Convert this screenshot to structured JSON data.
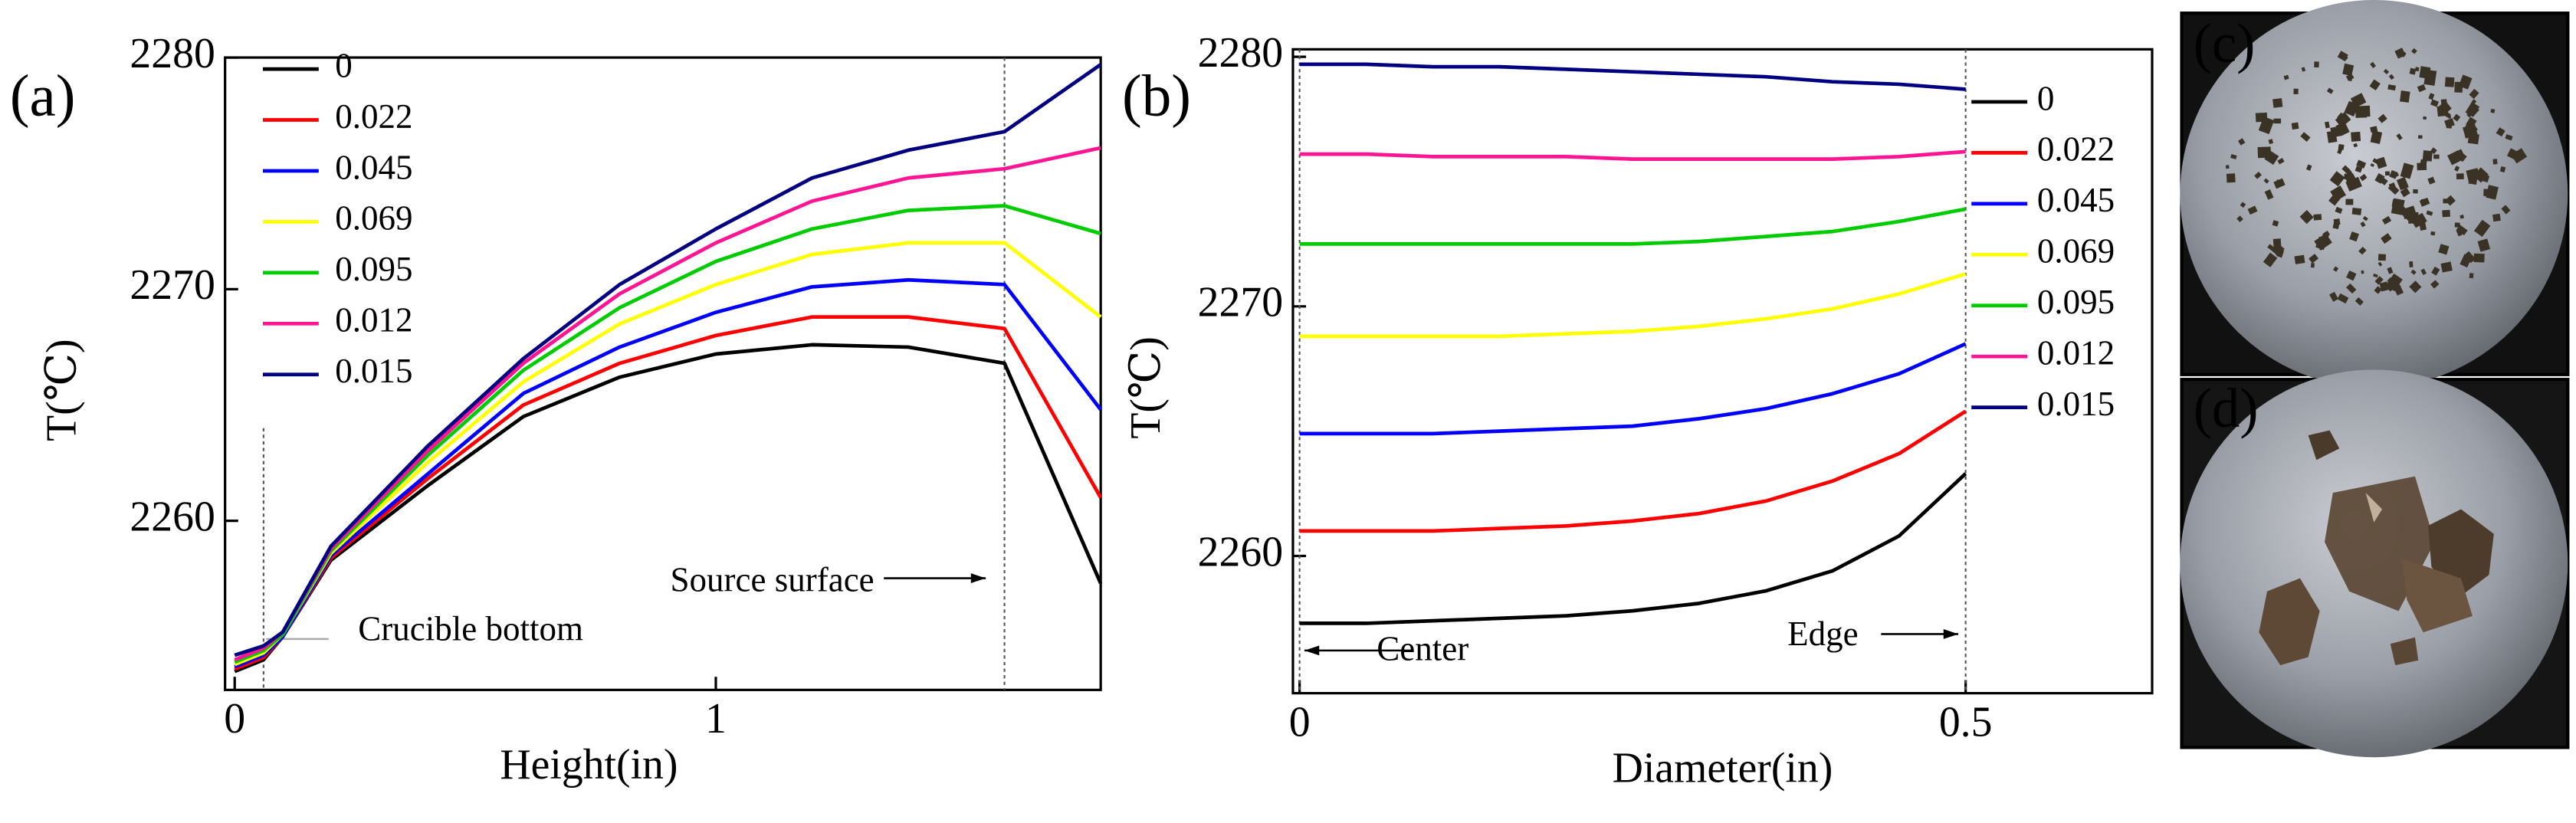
{
  "panel_labels": [
    "(a)",
    "(b)",
    "(c)",
    "(d)"
  ],
  "chart_data": [
    {
      "type": "line",
      "xlabel": "Height(in)",
      "ylabel": "T(℃)",
      "x": [
        0,
        0.06,
        0.1,
        0.2,
        0.4,
        0.6,
        0.8,
        1.0,
        1.2,
        1.4,
        1.6,
        1.8
      ],
      "xlim": [
        -0.02,
        1.8
      ],
      "xticks": [
        0,
        1
      ],
      "ylim": [
        2252.7,
        2280
      ],
      "yticks": [
        2260,
        2270,
        2280
      ],
      "legend": "upper left",
      "vlines": [
        0.06,
        1.6
      ],
      "annotations": [
        "Crucible bottom",
        "Source surface"
      ],
      "series": [
        {
          "name": "0",
          "color": "#000000",
          "values": [
            2253.5,
            2254,
            2255,
            2258.3,
            2261.5,
            2264.5,
            2266.2,
            2267.2,
            2267.6,
            2267.5,
            2266.8,
            2257.3
          ]
        },
        {
          "name": "0.022",
          "color": "#ff0000",
          "values": [
            2253.6,
            2254.1,
            2255,
            2258.4,
            2261.8,
            2265,
            2266.8,
            2268,
            2268.8,
            2268.8,
            2268.3,
            2261
          ]
        },
        {
          "name": "0.045",
          "color": "#0000ff",
          "values": [
            2253.7,
            2254.2,
            2255,
            2258.5,
            2262,
            2265.5,
            2267.5,
            2269,
            2270.1,
            2270.4,
            2270.2,
            2264.8
          ]
        },
        {
          "name": "0.069",
          "color": "#ffff00",
          "values": [
            2253.8,
            2254.3,
            2255.1,
            2258.6,
            2262.5,
            2266,
            2268.5,
            2270.2,
            2271.5,
            2272,
            2272,
            2268.8
          ]
        },
        {
          "name": "0.095",
          "color": "#00cc00",
          "values": [
            2253.9,
            2254.4,
            2255.1,
            2258.7,
            2262.8,
            2266.5,
            2269.2,
            2271.2,
            2272.6,
            2273.4,
            2273.6,
            2272.4
          ]
        },
        {
          "name": "0.012",
          "color": "#ff1493",
          "values": [
            2254,
            2254.5,
            2255.2,
            2258.8,
            2263,
            2266.8,
            2269.8,
            2272,
            2273.8,
            2274.8,
            2275.2,
            2276.1
          ]
        },
        {
          "name": "0.015",
          "color": "#000080",
          "values": [
            2254.2,
            2254.6,
            2255.2,
            2258.9,
            2263.2,
            2267,
            2270.2,
            2272.6,
            2274.8,
            2276,
            2276.8,
            2279.7
          ]
        }
      ]
    },
    {
      "type": "line",
      "xlabel": "Diameter(in)",
      "ylabel": "T(℃)",
      "x": [
        0,
        0.05,
        0.1,
        0.15,
        0.2,
        0.25,
        0.3,
        0.35,
        0.4,
        0.45,
        0.5
      ],
      "xlim": [
        -0.005,
        0.64
      ],
      "xticks": [
        0,
        0.5
      ],
      "ylim": [
        2254.5,
        2280.3
      ],
      "yticks": [
        2260,
        2270,
        2280
      ],
      "legend": "upper right",
      "vlines": [
        0,
        0.5
      ],
      "annotations": [
        "Center",
        "Edge"
      ],
      "series": [
        {
          "name": "0",
          "color": "#000000",
          "values": [
            2257.3,
            2257.3,
            2257.4,
            2257.5,
            2257.6,
            2257.8,
            2258.1,
            2258.6,
            2259.4,
            2260.8,
            2263.3
          ]
        },
        {
          "name": "0.022",
          "color": "#ff0000",
          "values": [
            2261,
            2261,
            2261,
            2261.1,
            2261.2,
            2261.4,
            2261.7,
            2262.2,
            2263,
            2264.1,
            2265.8
          ]
        },
        {
          "name": "0.045",
          "color": "#0000ff",
          "values": [
            2264.9,
            2264.9,
            2264.9,
            2265,
            2265.1,
            2265.2,
            2265.5,
            2265.9,
            2266.5,
            2267.3,
            2268.5
          ]
        },
        {
          "name": "0.069",
          "color": "#ffff00",
          "values": [
            2268.8,
            2268.8,
            2268.8,
            2268.8,
            2268.9,
            2269,
            2269.2,
            2269.5,
            2269.9,
            2270.5,
            2271.3
          ]
        },
        {
          "name": "0.095",
          "color": "#00cc00",
          "values": [
            2272.5,
            2272.5,
            2272.5,
            2272.5,
            2272.5,
            2272.5,
            2272.6,
            2272.8,
            2273,
            2273.4,
            2273.9
          ]
        },
        {
          "name": "0.012",
          "color": "#ff1493",
          "values": [
            2276.1,
            2276.1,
            2276,
            2276,
            2276,
            2275.9,
            2275.9,
            2275.9,
            2275.9,
            2276,
            2276.2
          ]
        },
        {
          "name": "0.015",
          "color": "#000080",
          "values": [
            2279.7,
            2279.7,
            2279.6,
            2279.6,
            2279.5,
            2279.4,
            2279.3,
            2279.2,
            2279,
            2278.9,
            2278.7
          ]
        }
      ]
    }
  ]
}
